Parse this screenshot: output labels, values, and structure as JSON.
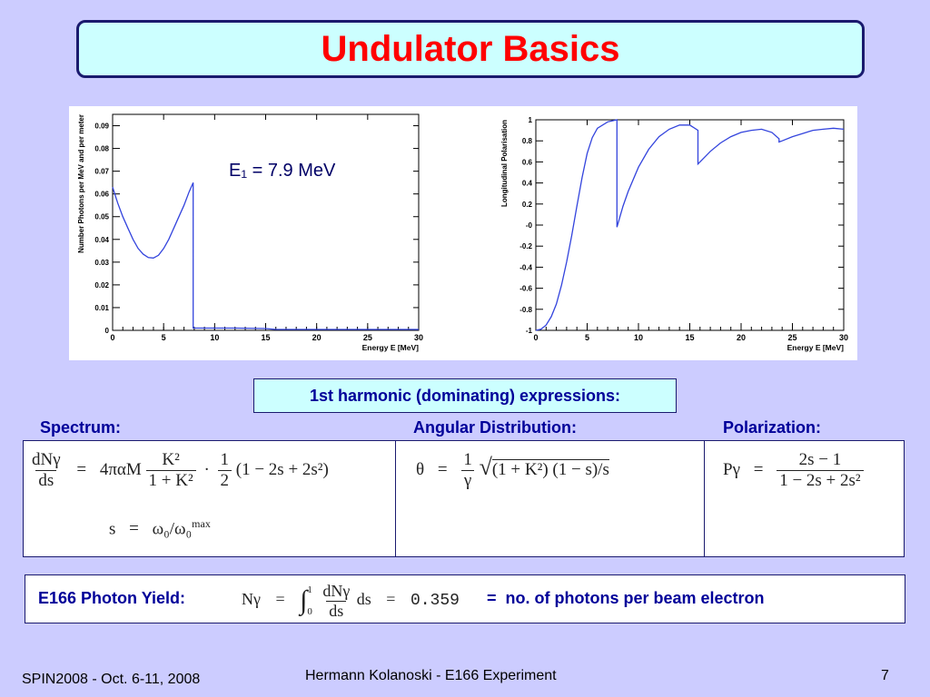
{
  "slide": {
    "title": "Undulator Basics",
    "harmonic_heading": "1st harmonic (dominating) expressions:",
    "sections": {
      "spectrum": "Spectrum:",
      "angular": "Angular Distribution:",
      "polarization": "Polarization:"
    },
    "formulas": {
      "spectrum_lhs_num": "dNγ",
      "spectrum_lhs_den": "ds",
      "eq": "=",
      "spectrum_coef": "4παM",
      "spectrum_frac_num": "K²",
      "spectrum_frac_den": "1 + K²",
      "dot": "·",
      "half_num": "1",
      "half_den": "2",
      "spectrum_tail": "(1 − 2s + 2s²)",
      "s_def_lhs": "s",
      "s_def_rhs": "ω₀/ω₀",
      "s_def_sup": "max",
      "theta": "θ",
      "theta_num": "1",
      "theta_den": "γ",
      "theta_sqrt": "√",
      "theta_rad": "(1 + K²) (1 − s)/s",
      "pol_lhs": "Pγ",
      "pol_num": "2s − 1",
      "pol_den": "1 − 2s + 2s²"
    },
    "yield": {
      "label": "E166 Photon Yield:",
      "lhs": "Nγ",
      "eq": "=",
      "integral": "∫",
      "int_upper": "1",
      "int_lower": "0",
      "int_num": "dNγ",
      "int_den": "ds",
      "ds": "ds",
      "value": "0.359",
      "tail": "=  no. of photons per beam electron"
    },
    "footer": {
      "left": "SPIN2008 - Oct. 6-11, 2008",
      "center": "Hermann Kolanoski - E166 Experiment",
      "page": "7"
    }
  },
  "chart_data": [
    {
      "type": "line",
      "xlabel": "Energy E [MeV]",
      "ylabel": "Number Photons per MeV and per meter",
      "xlim": [
        0,
        30
      ],
      "ylim": [
        0,
        0.095
      ],
      "x_ticks": [
        "0",
        "5",
        "10",
        "15",
        "20",
        "25",
        "30"
      ],
      "y_ticks": [
        "0",
        "0.01",
        "0.02",
        "0.03",
        "0.04",
        "0.05",
        "0.06",
        "0.07",
        "0.08",
        "0.09"
      ],
      "annotation": "E₁ = 7.9 MeV",
      "color": "#3344dd",
      "series": [
        {
          "x": [
            0,
            0.5,
            1,
            1.5,
            2,
            2.5,
            3,
            3.5,
            4,
            4.5,
            5,
            5.5,
            6,
            6.5,
            7,
            7.5,
            7.9,
            7.9,
            10,
            12,
            15,
            16,
            20,
            25,
            30
          ],
          "y": [
            0.063,
            0.056,
            0.05,
            0.045,
            0.04,
            0.036,
            0.0335,
            0.032,
            0.0318,
            0.033,
            0.036,
            0.04,
            0.045,
            0.05,
            0.055,
            0.061,
            0.065,
            0.001,
            0.001,
            0.001,
            0.0008,
            0.0004,
            0.0004,
            0.0004,
            0.0004
          ]
        }
      ]
    },
    {
      "type": "line",
      "xlabel": "Energy E [MeV]",
      "ylabel": "Longitudinal Polarisation",
      "xlim": [
        0,
        30
      ],
      "ylim": [
        -1,
        1
      ],
      "x_ticks": [
        "0",
        "5",
        "10",
        "15",
        "20",
        "25",
        "30"
      ],
      "y_ticks": [
        "-1",
        "-0.8",
        "-0.6",
        "-0.4",
        "-0.2",
        "-0",
        "0.2",
        "0.4",
        "0.6",
        "0.8",
        "1"
      ],
      "color": "#3344dd",
      "series": [
        {
          "x": [
            0,
            0.5,
            1,
            1.5,
            2,
            2.5,
            3,
            3.5,
            4,
            4.5,
            5,
            5.5,
            6,
            7,
            7.9,
            7.9,
            8.5,
            9,
            10,
            11,
            12,
            13,
            14,
            15,
            15.8,
            15.8,
            16.5,
            17,
            18,
            19,
            20,
            21,
            22,
            23,
            23.7,
            23.7,
            24,
            25,
            26,
            27,
            28,
            29,
            30
          ],
          "y": [
            -1.0,
            -0.99,
            -0.95,
            -0.87,
            -0.75,
            -0.57,
            -0.35,
            -0.1,
            0.18,
            0.45,
            0.68,
            0.83,
            0.92,
            0.98,
            1.0,
            -0.02,
            0.18,
            0.32,
            0.55,
            0.72,
            0.84,
            0.91,
            0.95,
            0.95,
            0.9,
            0.58,
            0.65,
            0.7,
            0.78,
            0.84,
            0.88,
            0.9,
            0.91,
            0.88,
            0.82,
            0.79,
            0.8,
            0.84,
            0.87,
            0.9,
            0.91,
            0.92,
            0.91
          ]
        }
      ]
    }
  ]
}
